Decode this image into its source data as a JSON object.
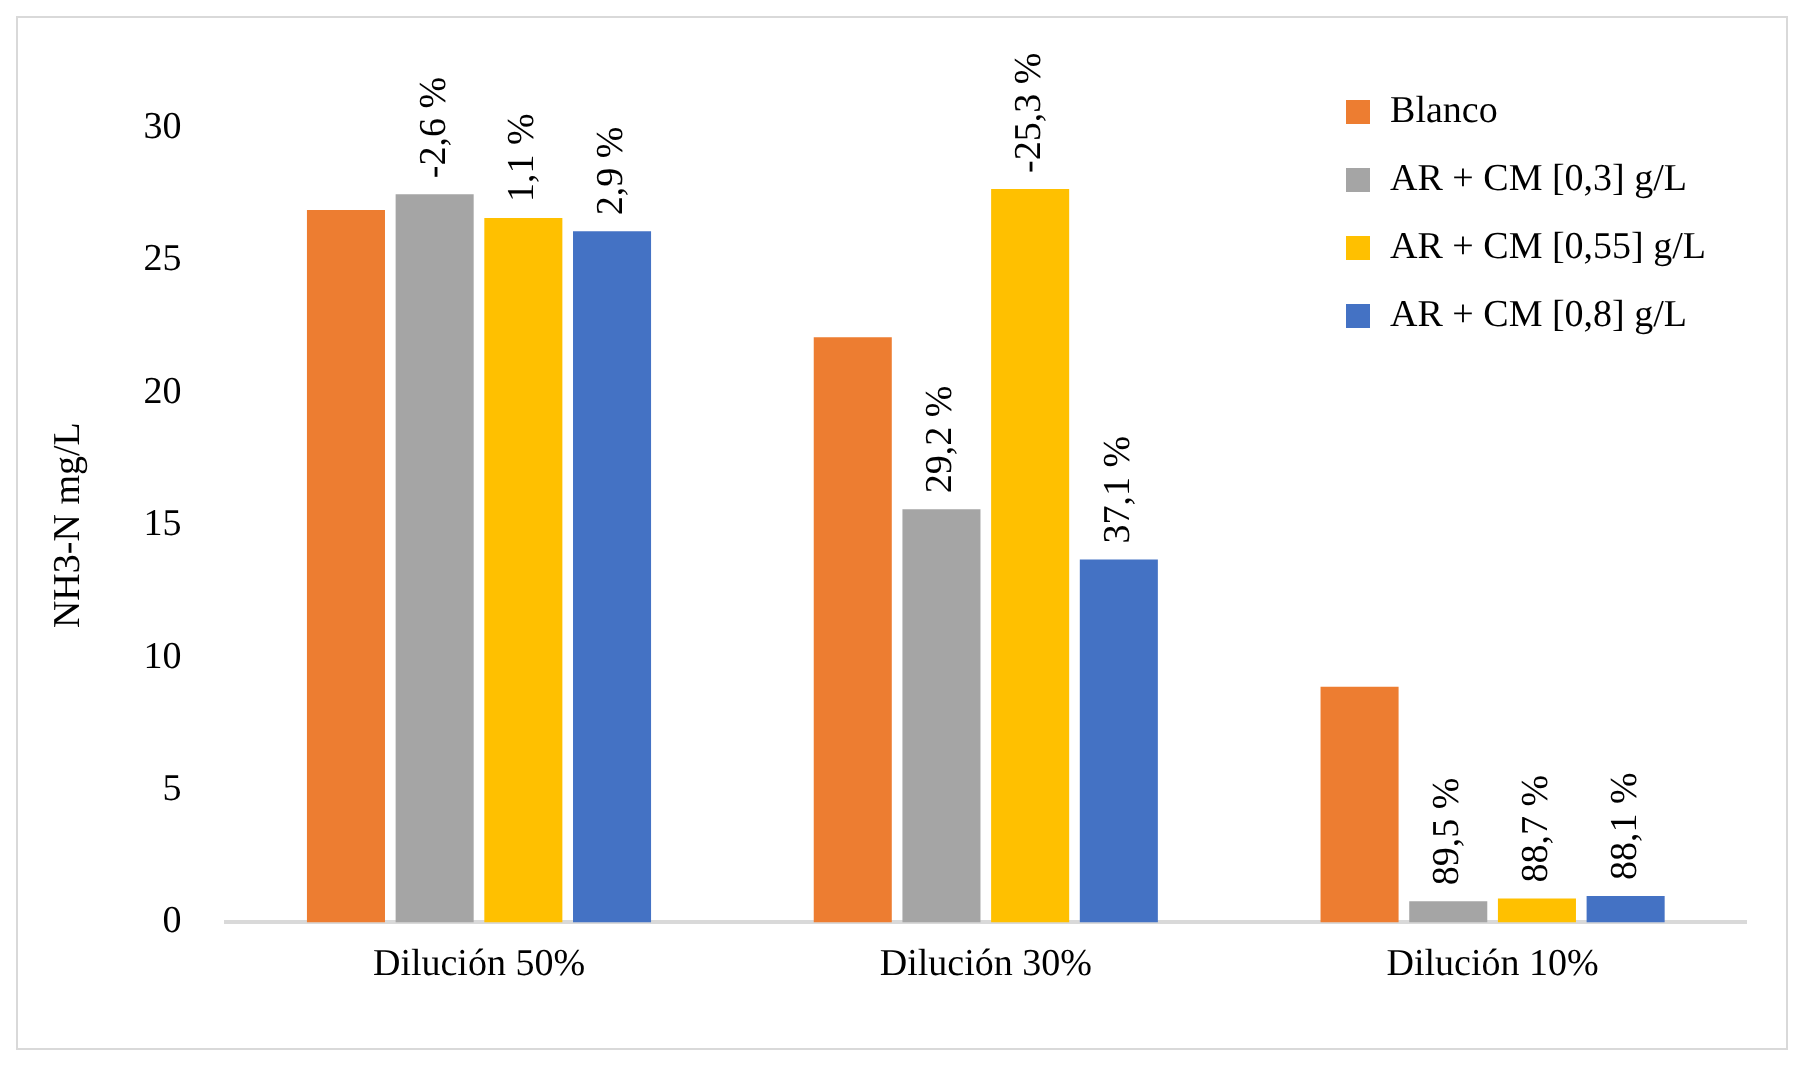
{
  "chart_data": {
    "type": "bar",
    "ylabel": "NH3-N mg/L",
    "categories": [
      "Dilución 50%",
      "Dilución 30%",
      "Dilución 10%"
    ],
    "series": [
      {
        "name": "Blanco",
        "color": "#ed7d31",
        "values": [
          26.9,
          22.1,
          8.9
        ]
      },
      {
        "name": "AR + CM [0,3] g/L",
        "color": "#a5a5a5",
        "values": [
          27.5,
          15.6,
          0.8
        ]
      },
      {
        "name": "AR + CM [0,55] g/L",
        "color": "#ffc000",
        "values": [
          26.6,
          27.7,
          0.9
        ]
      },
      {
        "name": "AR + CM [0,8] g/L",
        "color": "#4472c4",
        "values": [
          26.1,
          13.7,
          1.0
        ]
      }
    ],
    "annotations": [
      {
        "text": "-2,6 %",
        "x": "Dilución 50%",
        "y": 27.5
      },
      {
        "text": "1,1 %",
        "x": "Dilución 50%",
        "y": 26.6
      },
      {
        "text": "2,9 %",
        "x": "Dilución 50%",
        "y": 26.1
      },
      {
        "text": "29,2 %",
        "x": "Dilución 30%",
        "y": 15.6
      },
      {
        "text": "-25,3 %",
        "x": "Dilución 30%",
        "y": 27.7
      },
      {
        "text": "37,1 %",
        "x": "Dilución 30%",
        "y": 13.7
      },
      {
        "text": "89,5 %",
        "x": "Dilución 10%",
        "y": 0.8
      },
      {
        "text": "88,7 %",
        "x": "Dilución 10%",
        "y": 0.9
      },
      {
        "text": "88,1 %",
        "x": "Dilución 10%",
        "y": 1.0
      }
    ],
    "ylim": [
      0,
      30
    ],
    "yticks": [
      0,
      5,
      10,
      15,
      20,
      25,
      30
    ],
    "grid": false,
    "legend": "top right"
  }
}
